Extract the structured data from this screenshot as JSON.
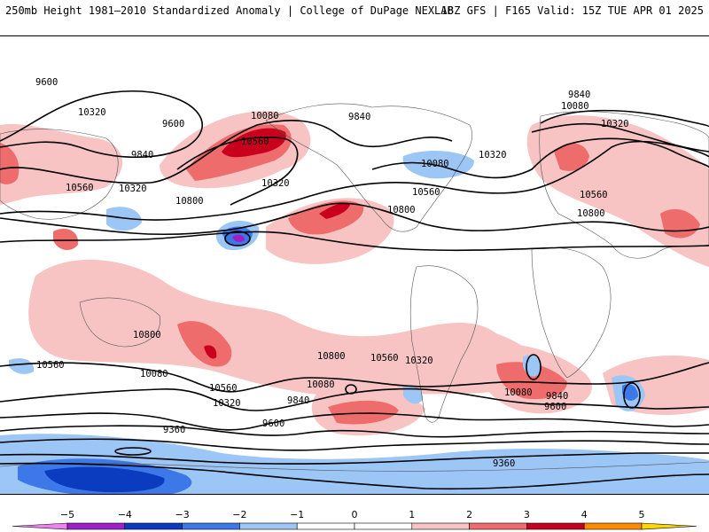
{
  "header": {
    "title": "250mb Height 1981–2010 Standardized Anomaly | College of DuPage NEXLAB",
    "run_info": "18Z GFS | F165 Valid: 15Z TUE APR 01 2025"
  },
  "map": {
    "field": "250mb geopotential height (contours) and standardized anomaly (shading)",
    "contour_labels": [
      "9600",
      "9600",
      "9840",
      "10080",
      "10560",
      "10320",
      "10560",
      "10800",
      "9840",
      "10080",
      "10320",
      "10320",
      "10560",
      "10800",
      "9840",
      "10080",
      "10320",
      "10560",
      "10800",
      "10800",
      "10560",
      "10080",
      "10320",
      "10560",
      "10800",
      "10560",
      "10320",
      "10080",
      "9840",
      "9600",
      "9360",
      "10080",
      "9840",
      "9600",
      "9360"
    ]
  },
  "colorbar": {
    "ticks": [
      "−5",
      "−4",
      "−3",
      "−2",
      "−1",
      "0",
      "1",
      "2",
      "3",
      "4",
      "5"
    ],
    "colors": {
      "below_-5": "#ee82ee",
      "-5_-4": "#a020c8",
      "-4_-3": "#0b3cc0",
      "-3_-2": "#3c78e8",
      "-2_-1": "#9cc6f5",
      "-1_0": "#ffffff",
      "0_1": "#ffffff",
      "1_2": "#f7c3c3",
      "2_3": "#ee6c6c",
      "3_4": "#c8001e",
      "4_5": "#ff8c00",
      "above_5": "#ffd700"
    }
  }
}
